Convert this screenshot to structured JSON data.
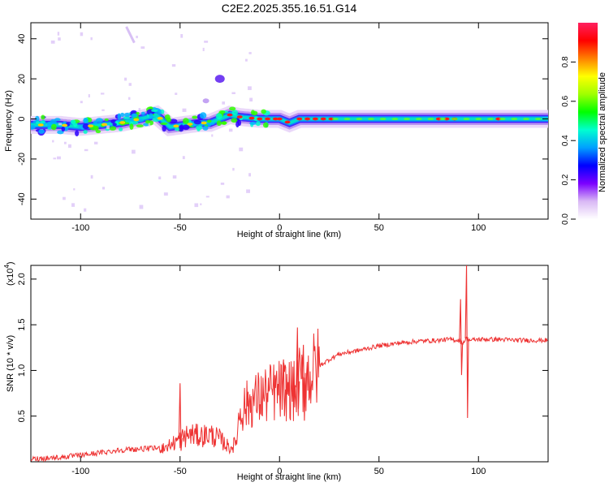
{
  "title": "C2E2.2025.355.16.51.G14",
  "chart_data": [
    {
      "type": "heatmap",
      "xlabel": "Height of straight line (km)",
      "ylabel": "Frequency (Hz)",
      "xlim": [
        -125,
        135
      ],
      "ylim": [
        -50,
        48
      ],
      "xticks": [
        -100,
        -50,
        0,
        50,
        100
      ],
      "xtick_labels": [
        "-100",
        "-50",
        "0",
        "50",
        "100"
      ],
      "yticks": [
        -40,
        -20,
        0,
        20,
        40
      ],
      "ytick_labels": [
        "-40",
        "-20",
        "0",
        "20",
        "40"
      ],
      "ridge_profile": {
        "x": [
          -125,
          -110,
          -100,
          -90,
          -80,
          -70,
          -62,
          -55,
          -48,
          -40,
          -35,
          -30,
          -25,
          -20,
          -10,
          0,
          5,
          10,
          20,
          40,
          60,
          80,
          90,
          100,
          110,
          120,
          135
        ],
        "frequency": [
          -3,
          -3,
          -4,
          -3,
          -2,
          0,
          2,
          -4,
          -3,
          -2,
          -2,
          0,
          2,
          1,
          0,
          0,
          -2,
          0,
          0,
          0,
          0,
          0,
          0,
          0,
          0,
          0,
          0
        ]
      },
      "colorbar": {
        "label": "Normalized spectral amplitude",
        "range": [
          0,
          1
        ],
        "ticks": [
          0.0,
          0.2,
          0.4,
          0.6,
          0.8
        ],
        "tick_labels": [
          "0.0",
          "0.2",
          "0.4",
          "0.6",
          "0.8"
        ],
        "colors": [
          "#ffffff",
          "#d9b8f5",
          "#7b00ff",
          "#0000ff",
          "#00a0ff",
          "#00ffd0",
          "#00ff00",
          "#a0ff00",
          "#ffff00",
          "#ff8000",
          "#ff0000",
          "#ff2060"
        ]
      }
    },
    {
      "type": "line",
      "xlabel": "Height of straight line (km)",
      "ylabel": "SNR (10 * v/v)",
      "exponent_label": "(x10",
      "exponent_power": "4",
      "exponent_close": ")",
      "xlim": [
        -125,
        135
      ],
      "ylim": [
        0,
        2.15
      ],
      "xticks": [
        -100,
        -50,
        0,
        50,
        100
      ],
      "xtick_labels": [
        "-100",
        "-50",
        "0",
        "50",
        "100"
      ],
      "yticks": [
        0.5,
        1.0,
        1.5,
        2.0
      ],
      "ytick_labels": [
        "0.5",
        "1.0",
        "1.5",
        "2.0"
      ],
      "color": "#ee3333",
      "series": [
        {
          "name": "SNR",
          "x": [
            -125,
            -110,
            -100,
            -90,
            -80,
            -70,
            -60,
            -55,
            -50,
            -45,
            -40,
            -35,
            -30,
            -25,
            -22,
            -20,
            -15,
            -10,
            -5,
            0,
            5,
            8,
            10,
            15,
            20,
            25,
            30,
            40,
            50,
            60,
            70,
            80,
            85,
            90,
            92,
            94,
            96,
            100,
            110,
            120,
            135
          ],
          "y": [
            0.03,
            0.05,
            0.07,
            0.1,
            0.13,
            0.14,
            0.15,
            0.18,
            0.25,
            0.3,
            0.28,
            0.3,
            0.25,
            0.15,
            0.2,
            0.55,
            0.65,
            0.7,
            0.75,
            0.78,
            0.8,
            0.75,
            0.88,
            0.95,
            1.05,
            1.12,
            1.18,
            1.22,
            1.27,
            1.3,
            1.32,
            1.33,
            1.34,
            1.33,
            1.3,
            1.35,
            1.33,
            1.34,
            1.34,
            1.33,
            1.33
          ]
        }
      ],
      "spikes": [
        {
          "x": 94,
          "high": 2.15,
          "low": 0.48
        },
        {
          "x": 91,
          "high": 1.78,
          "low": 0.95
        },
        {
          "x": 9,
          "high": 1.47,
          "low": 0.58
        },
        {
          "x": 2,
          "high": 1.12,
          "low": 0.5
        },
        {
          "x": 12,
          "high": 1.28,
          "low": 0.45
        },
        {
          "x": -50,
          "high": 0.86,
          "low": 0.12
        }
      ]
    }
  ]
}
